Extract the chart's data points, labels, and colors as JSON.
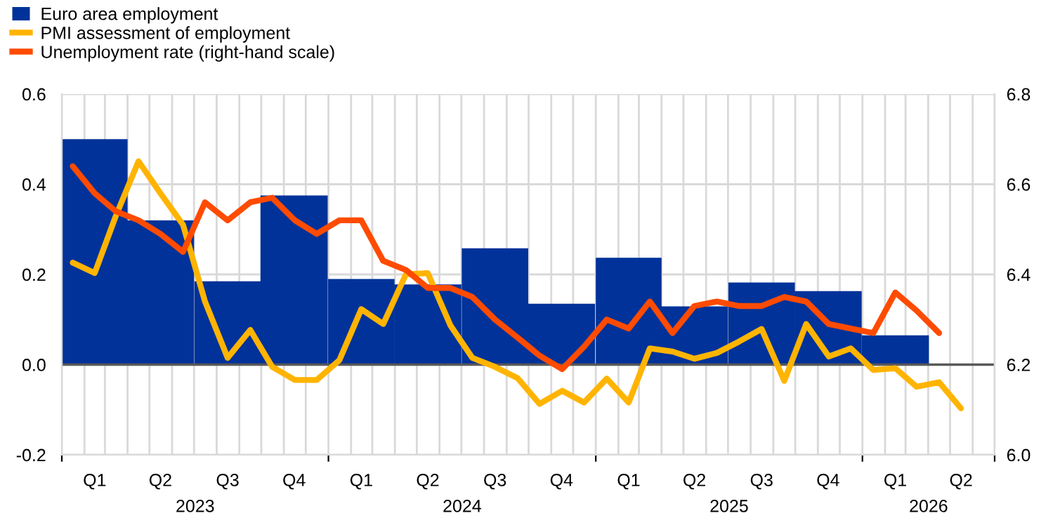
{
  "chart_data": {
    "type": "line",
    "xlim": [
      "2023-01-01",
      "2026-07-01"
    ],
    "xticks": [
      {
        "value": "2023-01-01",
        "label": null
      },
      {
        "value": "2023-02-15",
        "label": "Q1"
      },
      {
        "value": "2023-05-16",
        "label": "Q2"
      },
      {
        "value": "2023-08-16",
        "label": "Q3"
      },
      {
        "value": "2023-11-15",
        "label": "Q4"
      },
      {
        "value": "2024-01-01",
        "label": null
      },
      {
        "value": "2024-02-15",
        "label": "Q1"
      },
      {
        "value": "2024-05-16",
        "label": "Q2"
      },
      {
        "value": "2024-08-16",
        "label": "Q3"
      },
      {
        "value": "2024-11-15",
        "label": "Q4"
      },
      {
        "value": "2025-01-01",
        "label": null
      },
      {
        "value": "2025-02-15",
        "label": "Q1"
      },
      {
        "value": "2025-05-16",
        "label": "Q2"
      },
      {
        "value": "2025-08-16",
        "label": "Q3"
      },
      {
        "value": "2025-11-15",
        "label": "Q4"
      },
      {
        "value": "2026-01-01",
        "label": null
      },
      {
        "value": "2026-02-15",
        "label": "Q1"
      },
      {
        "value": "2026-05-16",
        "label": "Q2"
      },
      {
        "value": "2026-07-01",
        "label": null
      }
    ],
    "ylim": [
      -0.2,
      0.6
    ],
    "yticks": [
      -0.2,
      {
        "value": 0,
        "label": "0.0"
      },
      0.2,
      0.4,
      0.6
    ],
    "y2lim": [
      6.0,
      6.8
    ],
    "y2ticks": [
      {
        "value": 6.0,
        "label": "6.0"
      },
      6.2,
      6.4,
      6.6,
      6.8
    ],
    "grid": true,
    "legend": "top left",
    "ref_lines": [
      {
        "axis": "y",
        "value": 0,
        "color": "#595959"
      }
    ],
    "annotations": [
      "2023",
      "2024",
      "2025",
      "2026"
    ],
    "series": [
      {
        "name": "Euro area employment",
        "type": "bar",
        "color": "#003299",
        "x": [
          "2023-02-15",
          "2023-05-16",
          "2023-08-16",
          "2023-11-15",
          "2024-02-15",
          "2024-05-16",
          "2024-08-16",
          "2024-11-15",
          "2025-02-15",
          "2025-05-16",
          "2025-08-16",
          "2025-11-15",
          "2026-02-15"
        ],
        "values": [
          0.5,
          0.32,
          0.185,
          0.375,
          0.19,
          0.178,
          0.258,
          0.135,
          0.237,
          0.129,
          0.182,
          0.163,
          0.065
        ]
      },
      {
        "name": "PMI assessment of employment",
        "color": "#ffb400",
        "x": [
          "2023-01-16",
          "2023-02-15",
          "2023-03-16",
          "2023-04-16",
          "2023-05-16",
          "2023-06-16",
          "2023-07-16",
          "2023-08-16",
          "2023-09-16",
          "2023-10-16",
          "2023-11-16",
          "2023-12-16",
          "2024-01-16",
          "2024-02-15",
          "2024-03-16",
          "2024-04-16",
          "2024-05-16",
          "2024-06-16",
          "2024-07-16",
          "2024-08-16",
          "2024-09-16",
          "2024-10-16",
          "2024-11-16",
          "2024-12-16",
          "2025-01-16",
          "2025-02-15",
          "2025-03-16",
          "2025-04-16",
          "2025-05-16",
          "2025-06-16",
          "2025-07-16",
          "2025-08-16",
          "2025-09-16",
          "2025-10-16",
          "2025-11-16",
          "2025-12-16",
          "2026-01-16",
          "2026-02-15",
          "2026-03-16",
          "2026-04-16",
          "2026-05-16"
        ],
        "values": [
          0.226,
          0.203,
          0.33,
          0.451,
          0.38,
          0.31,
          0.14,
          0.015,
          0.077,
          -0.005,
          -0.034,
          -0.034,
          0.01,
          0.123,
          0.09,
          0.2,
          0.203,
          0.087,
          0.015,
          -0.005,
          -0.03,
          -0.087,
          -0.058,
          -0.084,
          -0.031,
          -0.084,
          0.036,
          0.029,
          0.013,
          0.026,
          0.051,
          0.079,
          -0.036,
          0.09,
          0.018,
          0.036,
          -0.012,
          -0.008,
          -0.049,
          -0.039,
          -0.097
        ]
      },
      {
        "name": "Unemployment rate (right-hand scale)",
        "axis": "y2",
        "color": "#ff4b00",
        "x": [
          "2023-01-16",
          "2023-02-15",
          "2023-03-16",
          "2023-04-16",
          "2023-05-16",
          "2023-06-16",
          "2023-07-16",
          "2023-08-16",
          "2023-09-16",
          "2023-10-16",
          "2023-11-16",
          "2023-12-16",
          "2024-01-16",
          "2024-02-15",
          "2024-03-16",
          "2024-04-16",
          "2024-05-16",
          "2024-06-16",
          "2024-07-16",
          "2024-08-16",
          "2024-09-16",
          "2024-10-16",
          "2024-11-16",
          "2024-12-16",
          "2025-01-16",
          "2025-02-15",
          "2025-03-16",
          "2025-04-16",
          "2025-05-16",
          "2025-06-16",
          "2025-07-16",
          "2025-08-16",
          "2025-09-16",
          "2025-10-16",
          "2025-11-16",
          "2025-12-16",
          "2026-01-16",
          "2026-02-15",
          "2026-03-16",
          "2026-04-16"
        ],
        "values": [
          6.64,
          6.58,
          6.54,
          6.52,
          6.49,
          6.45,
          6.56,
          6.52,
          6.56,
          6.57,
          6.52,
          6.49,
          6.52,
          6.52,
          6.43,
          6.41,
          6.37,
          6.37,
          6.35,
          6.3,
          6.26,
          6.22,
          6.19,
          6.24,
          6.3,
          6.28,
          6.34,
          6.27,
          6.33,
          6.34,
          6.33,
          6.33,
          6.35,
          6.34,
          6.29,
          6.28,
          6.27,
          6.36,
          6.32,
          6.27
        ]
      }
    ]
  }
}
